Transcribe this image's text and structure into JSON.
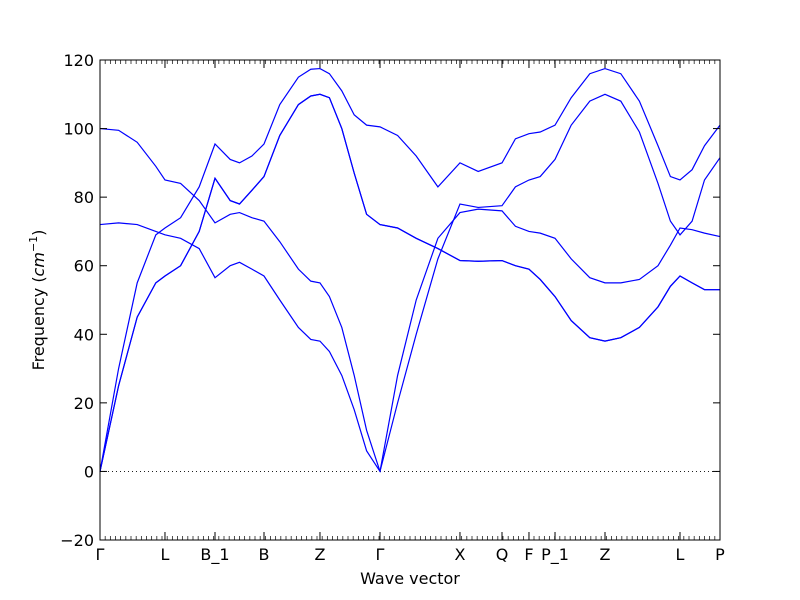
{
  "chart_data": {
    "type": "line",
    "xlabel": "Wave vector",
    "ylabel": "Frequency",
    "ylabel_unit": "cm",
    "ylabel_unit_exp": "−1",
    "ylim": [
      -20,
      120
    ],
    "yticks": [
      -20,
      0,
      20,
      40,
      60,
      80,
      100,
      120
    ],
    "xlim": [
      0,
      1
    ],
    "grid": false,
    "reference_line_y": 0,
    "line_color": "#0000ff",
    "xticks": [
      {
        "label": "Γ",
        "x": 0.0
      },
      {
        "label": "L",
        "x": 0.1048
      },
      {
        "label": "B_1",
        "x": 0.1855
      },
      {
        "label": "B",
        "x": 0.2645
      },
      {
        "label": "Z",
        "x": 0.3548
      },
      {
        "label": "Γ",
        "x": 0.4516
      },
      {
        "label": "X",
        "x": 0.5806
      },
      {
        "label": "Q",
        "x": 0.6484
      },
      {
        "label": "F",
        "x": 0.6919
      },
      {
        "label": "P_1",
        "x": 0.7339
      },
      {
        "label": "Z",
        "x": 0.8145
      },
      {
        "label": "L",
        "x": 0.9355
      },
      {
        "label": "P",
        "x": 1.0
      }
    ],
    "series": [
      {
        "values": [
          [
            0.0,
            0
          ],
          [
            0.03,
            25
          ],
          [
            0.06,
            45
          ],
          [
            0.09,
            55
          ],
          [
            0.1048,
            57
          ],
          [
            0.13,
            60
          ],
          [
            0.16,
            70
          ],
          [
            0.1855,
            85.5
          ],
          [
            0.21,
            79
          ],
          [
            0.225,
            78
          ],
          [
            0.245,
            82
          ],
          [
            0.2645,
            86
          ],
          [
            0.29,
            98
          ],
          [
            0.32,
            107
          ],
          [
            0.34,
            109.5
          ],
          [
            0.3548,
            110
          ],
          [
            0.37,
            109
          ],
          [
            0.39,
            100
          ],
          [
            0.41,
            87
          ],
          [
            0.43,
            75
          ],
          [
            0.4516,
            72
          ],
          [
            0.48,
            71
          ],
          [
            0.51,
            68
          ],
          [
            0.545,
            65
          ],
          [
            0.5806,
            61.5
          ],
          [
            0.61,
            61.3
          ],
          [
            0.6484,
            61.5
          ],
          [
            0.67,
            60
          ],
          [
            0.6919,
            59
          ],
          [
            0.71,
            56
          ],
          [
            0.7339,
            51
          ],
          [
            0.76,
            44
          ],
          [
            0.79,
            39
          ],
          [
            0.8145,
            38
          ],
          [
            0.84,
            39
          ],
          [
            0.87,
            42
          ],
          [
            0.9,
            48
          ],
          [
            0.92,
            54
          ],
          [
            0.9355,
            57
          ],
          [
            0.955,
            55
          ],
          [
            0.975,
            53
          ],
          [
            1.0,
            53
          ]
        ]
      },
      {
        "values": [
          [
            0.0,
            0
          ],
          [
            0.03,
            25
          ],
          [
            0.06,
            45
          ],
          [
            0.09,
            55
          ],
          [
            0.1048,
            57
          ],
          [
            0.13,
            60
          ],
          [
            0.16,
            70
          ],
          [
            0.1855,
            85.5
          ],
          [
            0.21,
            79
          ],
          [
            0.225,
            78
          ],
          [
            0.245,
            82
          ],
          [
            0.2645,
            86
          ],
          [
            0.29,
            98
          ],
          [
            0.32,
            107
          ],
          [
            0.34,
            109.5
          ],
          [
            0.3548,
            110
          ],
          [
            0.37,
            109
          ],
          [
            0.39,
            100
          ],
          [
            0.41,
            87
          ],
          [
            0.43,
            75
          ],
          [
            0.4516,
            72
          ],
          [
            0.48,
            71
          ],
          [
            0.51,
            68
          ],
          [
            0.545,
            65
          ],
          [
            0.5806,
            61.5
          ],
          [
            0.61,
            61.3
          ],
          [
            0.6484,
            61.5
          ],
          [
            0.67,
            60
          ],
          [
            0.6919,
            59
          ],
          [
            0.71,
            56
          ],
          [
            0.7339,
            51
          ],
          [
            0.76,
            44
          ],
          [
            0.79,
            39
          ],
          [
            0.8145,
            38
          ],
          [
            0.84,
            39
          ],
          [
            0.87,
            42
          ],
          [
            0.9,
            48
          ],
          [
            0.92,
            54
          ],
          [
            0.9355,
            57
          ],
          [
            0.955,
            55
          ],
          [
            0.975,
            53
          ],
          [
            1.0,
            53
          ]
        ]
      },
      {
        "values": [
          [
            0.0,
            72
          ],
          [
            0.03,
            72.5
          ],
          [
            0.06,
            72
          ],
          [
            0.09,
            70
          ],
          [
            0.1048,
            69
          ],
          [
            0.13,
            68
          ],
          [
            0.16,
            65
          ],
          [
            0.1855,
            56.5
          ],
          [
            0.21,
            60
          ],
          [
            0.225,
            61
          ],
          [
            0.245,
            59
          ],
          [
            0.2645,
            57
          ],
          [
            0.29,
            50
          ],
          [
            0.32,
            42
          ],
          [
            0.34,
            38.5
          ],
          [
            0.3548,
            38
          ],
          [
            0.37,
            35
          ],
          [
            0.39,
            28
          ],
          [
            0.41,
            18
          ],
          [
            0.43,
            6
          ],
          [
            0.4516,
            0
          ],
          [
            0.48,
            20
          ],
          [
            0.51,
            40
          ],
          [
            0.545,
            62
          ],
          [
            0.5806,
            78
          ],
          [
            0.61,
            77
          ],
          [
            0.6484,
            77.5
          ],
          [
            0.67,
            83
          ],
          [
            0.6919,
            85
          ],
          [
            0.71,
            86
          ],
          [
            0.7339,
            91
          ],
          [
            0.76,
            101
          ],
          [
            0.79,
            108
          ],
          [
            0.8145,
            110
          ],
          [
            0.84,
            108
          ],
          [
            0.87,
            99
          ],
          [
            0.9,
            84
          ],
          [
            0.92,
            73
          ],
          [
            0.9355,
            69
          ],
          [
            0.955,
            73
          ],
          [
            0.975,
            85
          ],
          [
            1.0,
            91.5
          ]
        ]
      },
      {
        "values": [
          [
            0.0,
            100
          ],
          [
            0.03,
            99.5
          ],
          [
            0.06,
            96
          ],
          [
            0.09,
            89
          ],
          [
            0.1048,
            85
          ],
          [
            0.13,
            84
          ],
          [
            0.16,
            79
          ],
          [
            0.1855,
            72.5
          ],
          [
            0.21,
            75
          ],
          [
            0.225,
            75.5
          ],
          [
            0.245,
            74
          ],
          [
            0.2645,
            73
          ],
          [
            0.29,
            67
          ],
          [
            0.32,
            59
          ],
          [
            0.34,
            55.5
          ],
          [
            0.3548,
            55
          ],
          [
            0.37,
            51
          ],
          [
            0.39,
            42
          ],
          [
            0.41,
            28
          ],
          [
            0.43,
            12
          ],
          [
            0.4516,
            0
          ],
          [
            0.48,
            28
          ],
          [
            0.51,
            50
          ],
          [
            0.545,
            68
          ],
          [
            0.5806,
            75.5
          ],
          [
            0.61,
            76.5
          ],
          [
            0.6484,
            76
          ],
          [
            0.67,
            71.5
          ],
          [
            0.6919,
            70
          ],
          [
            0.71,
            69.5
          ],
          [
            0.7339,
            68
          ],
          [
            0.76,
            62
          ],
          [
            0.79,
            56.5
          ],
          [
            0.8145,
            55
          ],
          [
            0.84,
            55
          ],
          [
            0.87,
            56
          ],
          [
            0.9,
            60
          ],
          [
            0.92,
            66
          ],
          [
            0.9355,
            71
          ],
          [
            0.955,
            70.5
          ],
          [
            0.975,
            69.5
          ],
          [
            1.0,
            68.5
          ]
        ]
      },
      {
        "values": [
          [
            0.0,
            0
          ],
          [
            0.03,
            30
          ],
          [
            0.06,
            55
          ],
          [
            0.09,
            69
          ],
          [
            0.1048,
            71
          ],
          [
            0.13,
            74
          ],
          [
            0.16,
            83
          ],
          [
            0.1855,
            95.5
          ],
          [
            0.21,
            91
          ],
          [
            0.225,
            90
          ],
          [
            0.245,
            92
          ],
          [
            0.2645,
            95.5
          ],
          [
            0.29,
            107
          ],
          [
            0.32,
            115
          ],
          [
            0.34,
            117.3
          ],
          [
            0.3548,
            117.5
          ],
          [
            0.37,
            116
          ],
          [
            0.39,
            111
          ],
          [
            0.41,
            104
          ],
          [
            0.43,
            101
          ],
          [
            0.4516,
            100.5
          ],
          [
            0.48,
            98
          ],
          [
            0.51,
            92
          ],
          [
            0.545,
            83
          ],
          [
            0.5806,
            90
          ],
          [
            0.61,
            87.5
          ],
          [
            0.6484,
            90
          ],
          [
            0.67,
            97
          ],
          [
            0.6919,
            98.5
          ],
          [
            0.71,
            99
          ],
          [
            0.7339,
            101
          ],
          [
            0.76,
            109
          ],
          [
            0.79,
            116
          ],
          [
            0.8145,
            117.5
          ],
          [
            0.84,
            116
          ],
          [
            0.87,
            108
          ],
          [
            0.9,
            95
          ],
          [
            0.92,
            86
          ],
          [
            0.9355,
            85
          ],
          [
            0.955,
            88
          ],
          [
            0.975,
            95
          ],
          [
            1.0,
            101
          ]
        ]
      }
    ]
  }
}
